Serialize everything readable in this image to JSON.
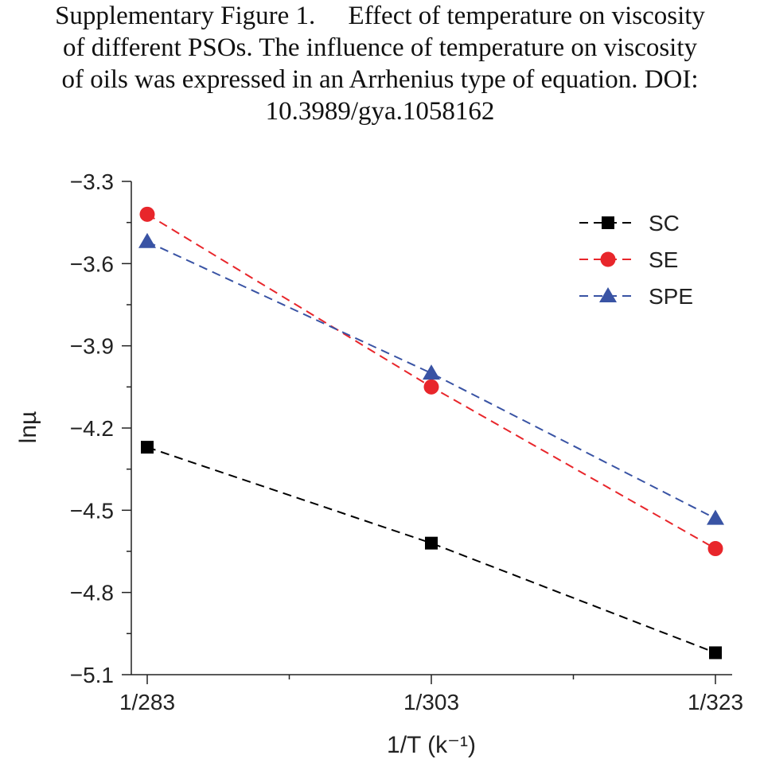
{
  "caption": {
    "line1": "Supplementary Figure 1.  Effect of temperature on viscosity",
    "line2": "of different PSOs. The influence of temperature on viscosity",
    "line3": "of oils was expressed in an Arrhenius type of equation. DOI:",
    "line4": "10.3989/gya.1058162"
  },
  "chart_data": {
    "type": "line",
    "xlabel": "1/T (k⁻¹)",
    "ylabel": "lnµ",
    "categories": [
      "1/283",
      "1/303",
      "1/323"
    ],
    "ylim": [
      -5.1,
      -3.3
    ],
    "yticks": [
      -3.3,
      -3.6,
      -3.9,
      -4.2,
      -4.5,
      -4.8,
      -5.1
    ],
    "ytick_labels": [
      "−3.3",
      "−3.6",
      "−3.9",
      "−4.2",
      "−4.5",
      "−4.8",
      "−5.1"
    ],
    "grid": false,
    "legend_position": "top-right",
    "line_style": "dashed",
    "series": [
      {
        "name": "SC",
        "values": [
          -4.27,
          -4.62,
          -5.02
        ],
        "color": "#000000",
        "marker": "square"
      },
      {
        "name": "SE",
        "values": [
          -3.42,
          -4.05,
          -4.64
        ],
        "color": "#e8262b",
        "marker": "circle"
      },
      {
        "name": "SPE",
        "values": [
          -3.52,
          -4.0,
          -4.53
        ],
        "color": "#3953a4",
        "marker": "triangle"
      }
    ]
  }
}
